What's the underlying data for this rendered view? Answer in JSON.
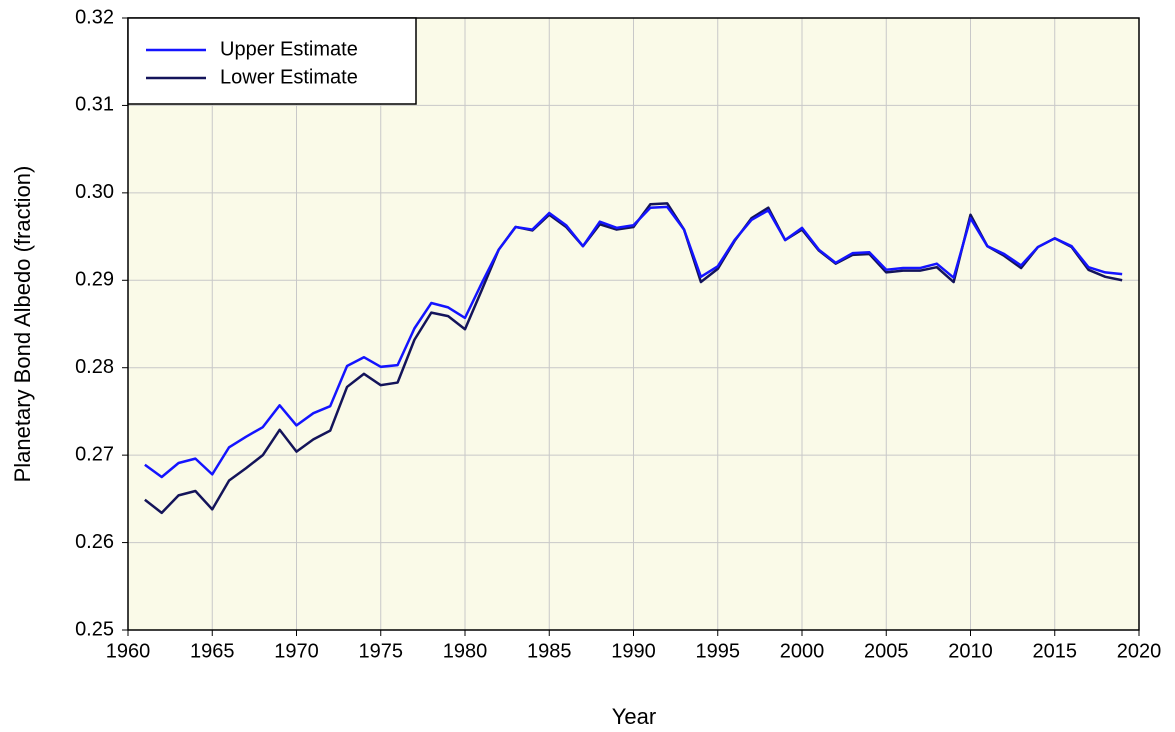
{
  "chart_data": {
    "type": "line",
    "xlabel": "Year",
    "ylabel": "Planetary Bond Albedo (fraction)",
    "x": [
      1961,
      1962,
      1963,
      1964,
      1965,
      1966,
      1967,
      1968,
      1969,
      1970,
      1971,
      1972,
      1973,
      1974,
      1975,
      1976,
      1977,
      1978,
      1979,
      1980,
      1981,
      1982,
      1983,
      1984,
      1985,
      1986,
      1987,
      1988,
      1989,
      1990,
      1991,
      1992,
      1993,
      1994,
      1995,
      1996,
      1997,
      1998,
      1999,
      2000,
      2001,
      2002,
      2003,
      2004,
      2005,
      2006,
      2007,
      2008,
      2009,
      2010,
      2011,
      2012,
      2013,
      2014,
      2015,
      2016,
      2017,
      2018,
      2019
    ],
    "series": [
      {
        "name": "Upper Estimate",
        "color": "#1414ff",
        "values": [
          0.2689,
          0.2675,
          0.2691,
          0.2696,
          0.2678,
          0.2709,
          0.2721,
          0.2732,
          0.2757,
          0.2734,
          0.2748,
          0.2756,
          0.2802,
          0.2812,
          0.2801,
          0.2803,
          0.2845,
          0.2874,
          0.2869,
          0.2857,
          0.2897,
          0.2935,
          0.2961,
          0.2958,
          0.2977,
          0.2963,
          0.2939,
          0.2967,
          0.296,
          0.2963,
          0.2983,
          0.2984,
          0.2958,
          0.2904,
          0.2916,
          0.2946,
          0.2969,
          0.298,
          0.2946,
          0.296,
          0.2935,
          0.292,
          0.2931,
          0.2932,
          0.2912,
          0.2914,
          0.2914,
          0.2919,
          0.2903,
          0.2971,
          0.2939,
          0.293,
          0.2917,
          0.2938,
          0.2948,
          0.2939,
          0.2915,
          0.2909,
          0.2907
        ]
      },
      {
        "name": "Lower Estimate",
        "color": "#14145a",
        "values": [
          0.2649,
          0.2634,
          0.2654,
          0.2659,
          0.2638,
          0.2671,
          0.2685,
          0.27,
          0.2729,
          0.2704,
          0.2718,
          0.2728,
          0.2778,
          0.2793,
          0.278,
          0.2783,
          0.2832,
          0.2863,
          0.2859,
          0.2844,
          0.2889,
          0.2935,
          0.2961,
          0.2957,
          0.2975,
          0.2961,
          0.2939,
          0.2964,
          0.2958,
          0.2961,
          0.2987,
          0.2988,
          0.2958,
          0.2898,
          0.2913,
          0.2945,
          0.2971,
          0.2983,
          0.2946,
          0.2958,
          0.2934,
          0.2919,
          0.2929,
          0.293,
          0.2909,
          0.2911,
          0.2911,
          0.2915,
          0.2898,
          0.2975,
          0.2939,
          0.2928,
          0.2914,
          0.2938,
          0.2948,
          0.2938,
          0.2912,
          0.2904,
          0.29
        ]
      }
    ],
    "xlim": [
      1960,
      2020
    ],
    "xticks": [
      1960,
      1965,
      1970,
      1975,
      1980,
      1985,
      1990,
      1995,
      2000,
      2005,
      2010,
      2015,
      2020
    ],
    "ylim": [
      0.25,
      0.32
    ],
    "yticks": [
      0.25,
      0.26,
      0.27,
      0.28,
      0.29,
      {
        "value": 0.3,
        "label": "0.30"
      },
      0.31,
      0.32
    ],
    "grid": true,
    "legend": "upper-left",
    "background": "#fafae8"
  }
}
